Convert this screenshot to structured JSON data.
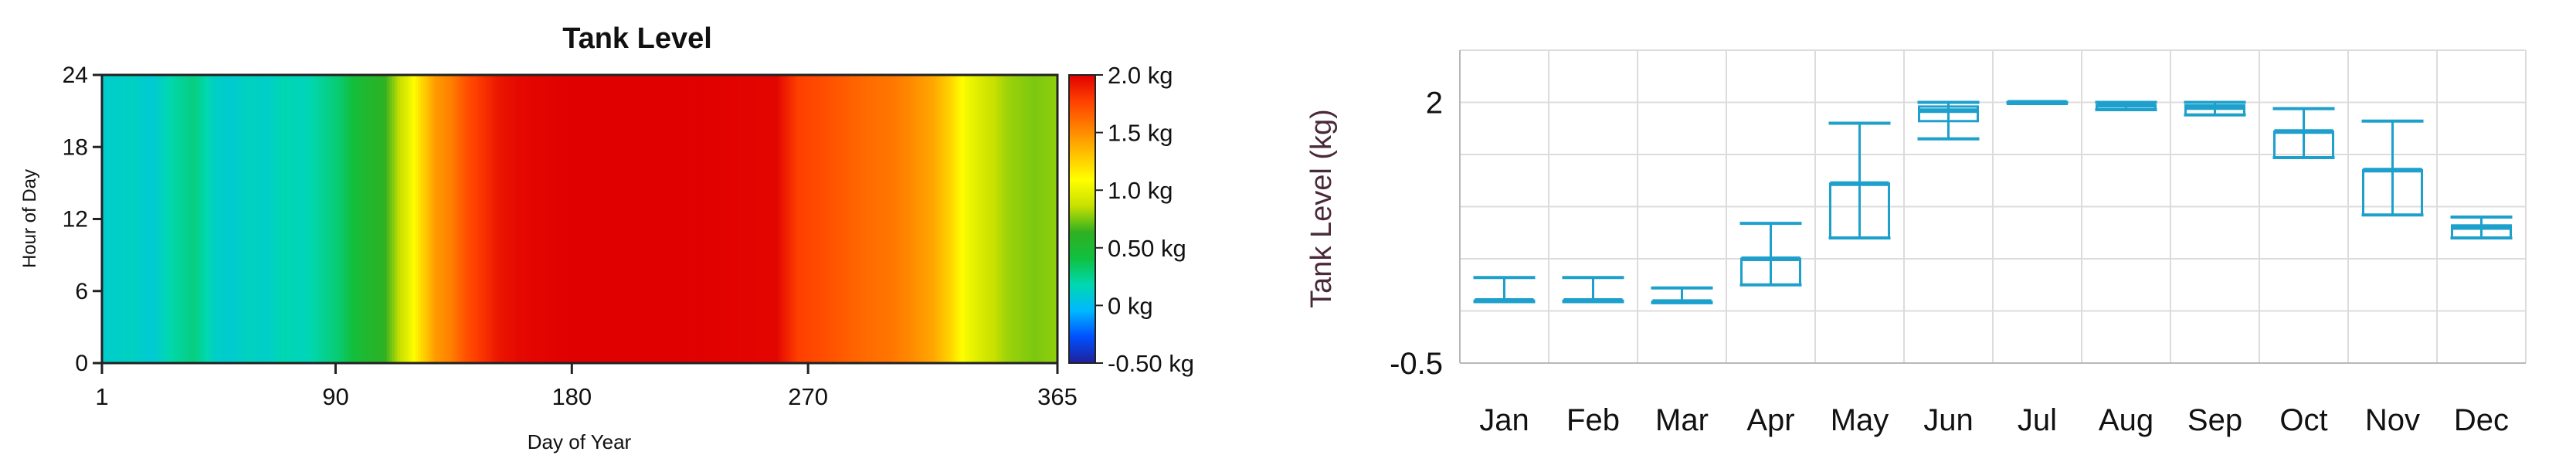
{
  "chart_data": [
    {
      "type": "heatmap",
      "title": "Tank Level",
      "xlabel": "Day of Year",
      "ylabel": "Hour of Day",
      "xlim": [
        1,
        365
      ],
      "ylim": [
        0,
        24
      ],
      "xticks": [
        1,
        90,
        180,
        270,
        365
      ],
      "xtick_labels": [
        "1",
        "90",
        "180",
        "270",
        "365"
      ],
      "yticks": [
        0,
        6,
        12,
        18,
        24
      ],
      "ytick_labels": [
        "0",
        "6",
        "12",
        "18",
        "24"
      ],
      "colorbar": {
        "min": -0.5,
        "max": 2.0,
        "unit": "kg",
        "ticks": [
          2.0,
          1.5,
          1.0,
          0.5,
          0,
          -0.5
        ],
        "tick_labels": [
          "2.0 kg",
          "1.5 kg",
          "1.0 kg",
          "0.50 kg",
          "0 kg",
          "-0.50 kg"
        ],
        "colors": [
          "#20209a",
          "#0050ff",
          "#00b8ff",
          "#00d8b0",
          "#10c040",
          "#30b020",
          "#c8e000",
          "#ffff00",
          "#ffc000",
          "#ff8000",
          "#ff4000",
          "#e00000"
        ]
      },
      "daily_profile": [
        {
          "day": 1,
          "value": 0.1
        },
        {
          "day": 12,
          "value": 0.13
        },
        {
          "day": 20,
          "value": 0.08
        },
        {
          "day": 28,
          "value": 0.2
        },
        {
          "day": 36,
          "value": 0.28
        },
        {
          "day": 44,
          "value": 0.12
        },
        {
          "day": 50,
          "value": 0.09
        },
        {
          "day": 57,
          "value": 0.14
        },
        {
          "day": 64,
          "value": 0.11
        },
        {
          "day": 70,
          "value": 0.18
        },
        {
          "day": 78,
          "value": 0.15
        },
        {
          "day": 86,
          "value": 0.25
        },
        {
          "day": 92,
          "value": 0.32
        },
        {
          "day": 100,
          "value": 0.5
        },
        {
          "day": 108,
          "value": 0.6
        },
        {
          "day": 114,
          "value": 0.85
        },
        {
          "day": 118,
          "value": 1.0
        },
        {
          "day": 122,
          "value": 1.2
        },
        {
          "day": 128,
          "value": 1.45
        },
        {
          "day": 134,
          "value": 1.55
        },
        {
          "day": 140,
          "value": 1.72
        },
        {
          "day": 146,
          "value": 1.82
        },
        {
          "day": 152,
          "value": 1.92
        },
        {
          "day": 160,
          "value": 1.97
        },
        {
          "day": 180,
          "value": 2.0
        },
        {
          "day": 220,
          "value": 2.0
        },
        {
          "day": 258,
          "value": 1.98
        },
        {
          "day": 266,
          "value": 1.78
        },
        {
          "day": 280,
          "value": 1.7
        },
        {
          "day": 292,
          "value": 1.62
        },
        {
          "day": 302,
          "value": 1.58
        },
        {
          "day": 310,
          "value": 1.5
        },
        {
          "day": 318,
          "value": 1.4
        },
        {
          "day": 324,
          "value": 1.25
        },
        {
          "day": 330,
          "value": 1.05
        },
        {
          "day": 338,
          "value": 0.9
        },
        {
          "day": 346,
          "value": 0.8
        },
        {
          "day": 356,
          "value": 0.75
        },
        {
          "day": 365,
          "value": 0.78
        }
      ]
    },
    {
      "type": "box",
      "title": "",
      "xlabel": "",
      "ylabel": "Tank Level (kg)",
      "ylim": [
        -0.5,
        2.5
      ],
      "yticks": [
        -0.5,
        2
      ],
      "ytick_labels": [
        "-0.5",
        "2"
      ],
      "grid": true,
      "categories": [
        "Jan",
        "Feb",
        "Mar",
        "Apr",
        "May",
        "Jun",
        "Jul",
        "Aug",
        "Sep",
        "Oct",
        "Nov",
        "Dec"
      ],
      "series": [
        {
          "color": "#1ea0cc",
          "min": [
            0.09,
            0.09,
            0.08,
            0.25,
            0.7,
            1.65,
            2.0,
            1.93,
            1.88,
            1.47,
            0.92,
            0.7
          ],
          "q1": [
            0.09,
            0.09,
            0.08,
            0.25,
            0.7,
            1.82,
            1.99,
            1.93,
            1.88,
            1.47,
            0.92,
            0.7
          ],
          "median": [
            0.1,
            0.1,
            0.09,
            0.5,
            1.22,
            1.92,
            2.0,
            1.97,
            1.95,
            1.72,
            1.35,
            0.8
          ],
          "q3": [
            0.1,
            0.1,
            0.09,
            0.5,
            1.22,
            1.96,
            2.0,
            1.97,
            1.97,
            1.72,
            1.35,
            0.82
          ],
          "max": [
            0.32,
            0.32,
            0.22,
            0.84,
            1.8,
            2.0,
            2.0,
            2.0,
            2.0,
            1.94,
            1.82,
            0.9
          ]
        }
      ]
    }
  ]
}
